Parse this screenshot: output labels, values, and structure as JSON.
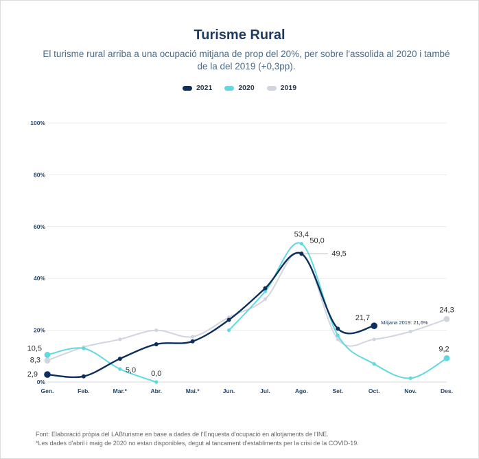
{
  "title": "Turisme Rural",
  "subtitle": "El turisme rural arriba a una ocupació mitjana de prop del 20%, per sobre l'assolida al 2020 i també de la del 2019 (+0,3pp).",
  "footer": {
    "source": "Font: Elaboració pròpia del LABturisme en base a dades de l'Enquesta d'ocupació en allotjaments de l'INE.",
    "note": "*Les dades d'abril i maig de 2020 no estan disponibles, degut al tancament d'establiments per la crisi de la COVID-19."
  },
  "chart_data": {
    "type": "line",
    "categories": [
      "Gen.",
      "Feb.",
      "Mar.*",
      "Abr.",
      "Mai.*",
      "Jun.",
      "Jul.",
      "Ago.",
      "Set.",
      "Oct.",
      "Nov.",
      "Des."
    ],
    "ylim": [
      0,
      100
    ],
    "yticks": [
      "0%",
      "20%",
      "40%",
      "60%",
      "80%",
      "100%"
    ],
    "grid": true,
    "legend_position": "top-center",
    "series": [
      {
        "name": "2021",
        "color": "#0d2f5e",
        "values": [
          2.9,
          2.2,
          9.0,
          14.6,
          15.7,
          24.0,
          36.2,
          49.5,
          20.6,
          21.7,
          null,
          null
        ]
      },
      {
        "name": "2020",
        "color": "#5fd9df",
        "values": [
          10.5,
          13.0,
          5.0,
          0.0,
          null,
          20.0,
          35.0,
          53.4,
          18.0,
          7.0,
          1.5,
          9.2
        ]
      },
      {
        "name": "2019",
        "color": "#d0d5df",
        "values": [
          8.3,
          13.5,
          16.5,
          20.0,
          17.5,
          25.0,
          32.0,
          50.0,
          16.5,
          16.5,
          19.5,
          24.3
        ]
      }
    ],
    "labels": [
      {
        "text": "2,9",
        "series": 0,
        "index": 0
      },
      {
        "text": "10,5",
        "series": 1,
        "index": 0
      },
      {
        "text": "8,3",
        "series": 2,
        "index": 0
      },
      {
        "text": "5,0",
        "series": 1,
        "index": 2
      },
      {
        "text": "0,0",
        "series": 1,
        "index": 3
      },
      {
        "text": "53,4",
        "series": 1,
        "index": 7
      },
      {
        "text": "50,0",
        "series": 2,
        "index": 7
      },
      {
        "text": "49,5",
        "series": 0,
        "index": 7
      },
      {
        "text": "21,7",
        "series": 0,
        "index": 9
      },
      {
        "text": "24,3",
        "series": 2,
        "index": 11
      },
      {
        "text": "9,2",
        "series": 1,
        "index": 11
      }
    ],
    "annotation": "Mitjana 2019: 21,6%"
  }
}
